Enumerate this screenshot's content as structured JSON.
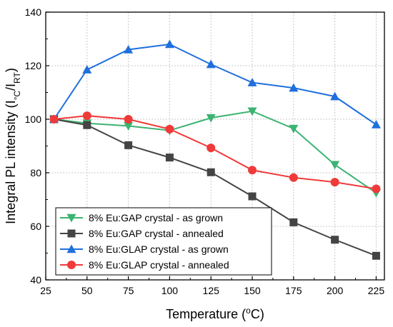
{
  "chart_data": {
    "type": "line",
    "x": [
      30,
      50,
      75,
      100,
      125,
      150,
      175,
      200,
      225
    ],
    "xlim": [
      25,
      230
    ],
    "ylim": [
      40,
      140
    ],
    "xticks": [
      25,
      50,
      75,
      100,
      125,
      150,
      175,
      200,
      225
    ],
    "yticks": [
      40,
      60,
      80,
      100,
      120,
      140
    ],
    "xlabel": {
      "pre": "Temperature (",
      "sup": "o",
      "post": "C)"
    },
    "ylabel": {
      "pre": "Integral PL intensity (I",
      "sub1": "°C",
      "mid": "/I",
      "sub2": "RT",
      "post": ")"
    },
    "grid": true,
    "legend_position": "bottom-left",
    "series": [
      {
        "name": "8% Eu:GAP crystal - as grown",
        "color": "#3cb371",
        "marker": "triangle-down",
        "values": [
          100,
          98.5,
          97.5,
          95.8,
          100.5,
          103,
          96.5,
          83,
          72.5
        ]
      },
      {
        "name": "8% Eu:GAP crystal - annealed",
        "color": "#444444",
        "marker": "square",
        "values": [
          100,
          97.8,
          90.3,
          85.7,
          80.2,
          71.2,
          61.5,
          55,
          49
        ]
      },
      {
        "name": "8% Eu:GLAP crystal - as grown",
        "color": "#1f6fdc",
        "marker": "triangle-up",
        "values": [
          100,
          118.5,
          126,
          128,
          120.5,
          113.7,
          111.7,
          108.5,
          98
        ]
      },
      {
        "name": "8% Eu:GLAP crystal - annealed",
        "color": "#f03a3a",
        "marker": "circle",
        "values": [
          100,
          101.3,
          100,
          96.3,
          89.3,
          81,
          78.2,
          76.5,
          74
        ]
      }
    ]
  }
}
